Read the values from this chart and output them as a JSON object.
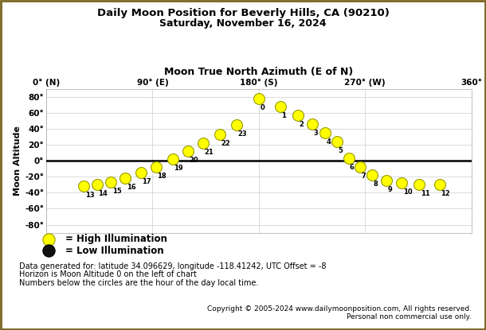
{
  "title1": "Daily Moon Position for Beverly Hills, CA (90210)",
  "title2": "Saturday, November 16, 2024",
  "xlabel": "Moon True North Azimuth (E of N)",
  "ylabel": "Moon Altitude",
  "x_ticks": [
    0,
    90,
    180,
    270,
    360
  ],
  "x_tick_labels": [
    "0° (N)",
    "90° (E)",
    "180° (S)",
    "270° (W)",
    "360°"
  ],
  "y_ticks": [
    -80,
    -60,
    -40,
    -20,
    0,
    20,
    40,
    60,
    80
  ],
  "y_tick_labels": [
    "-80°",
    "-60°",
    "-40°",
    "-20°",
    "0°",
    "20°",
    "40°",
    "60°",
    "80°"
  ],
  "xlim": [
    0,
    360
  ],
  "ylim": [
    -90,
    90
  ],
  "hours": [
    13,
    14,
    15,
    16,
    17,
    18,
    19,
    20,
    21,
    22,
    23,
    0,
    1,
    2,
    3,
    4,
    5,
    6,
    7,
    8,
    9,
    10,
    11,
    12
  ],
  "azimuth": [
    32,
    43,
    55,
    67,
    80,
    93,
    107,
    120,
    133,
    147,
    161,
    180,
    198,
    213,
    225,
    236,
    246,
    256,
    266,
    276,
    288,
    301,
    316,
    333
  ],
  "altitude": [
    -32,
    -30,
    -27,
    -22,
    -15,
    -8,
    2,
    12,
    22,
    33,
    45,
    78,
    68,
    57,
    46,
    35,
    24,
    3,
    -8,
    -18,
    -25,
    -28,
    -30,
    -30
  ],
  "illumination": [
    "high",
    "high",
    "high",
    "high",
    "high",
    "high",
    "high",
    "high",
    "high",
    "high",
    "high",
    "high",
    "high",
    "high",
    "high",
    "high",
    "high",
    "high",
    "high",
    "high",
    "high",
    "high",
    "high",
    "high"
  ],
  "circle_color_high": "#FFFF00",
  "circle_color_low": "#111111",
  "circle_edge_color": "#999900",
  "bg_color": "#ffffff",
  "grid_color": "#cccccc",
  "horizon_color": "#000000",
  "legend_text_high": "= High Illumination",
  "legend_text_low": "= Low Illumination",
  "footer1": "Data generated for: latitude 34.096629, longitude -118.41242, UTC Offset = -8",
  "footer2": "Horizon is Moon Altitude 0 on the left of chart",
  "footer3": "Numbers below the circles are the hour of the day local time.",
  "copyright": "Copyright © 2005-2024 www.dailymoonposition.com, All rights reserved.",
  "copyright2": "Personal non commercial use only.",
  "border_color": "#7a6520"
}
